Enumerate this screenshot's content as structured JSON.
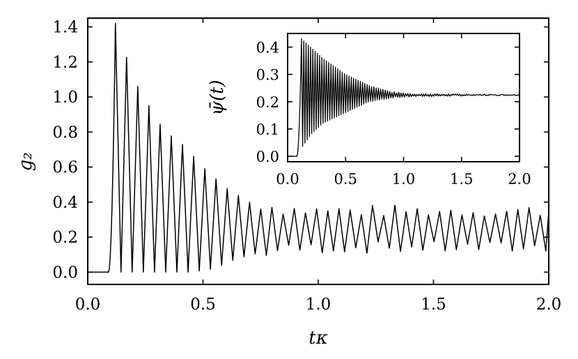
{
  "chart_data": [
    {
      "type": "line",
      "xlabel": "tκ",
      "ylabel": "g₂",
      "xlim": [
        0.0,
        2.0
      ],
      "ylim": [
        -0.07,
        1.45
      ],
      "x_ticks": [
        "0.0",
        "0.5",
        "1.0",
        "1.5",
        "2.0"
      ],
      "y_ticks": [
        "0.0",
        "0.2",
        "0.4",
        "0.6",
        "0.8",
        "1.0",
        "1.2",
        "1.4"
      ],
      "series": [
        {
          "color": "#000000",
          "description_envelope": {
            "onset_x": 0.09,
            "first_peak": {
              "x": 0.12,
              "y": 1.42
            },
            "peaks": [
              [
                0.12,
                1.42
              ],
              [
                0.17,
                1.22
              ],
              [
                0.22,
                1.05
              ],
              [
                0.27,
                0.94
              ],
              [
                0.31,
                0.85
              ],
              [
                0.36,
                0.78
              ],
              [
                0.42,
                0.72
              ],
              [
                0.5,
                0.6
              ],
              [
                0.6,
                0.48
              ],
              [
                0.7,
                0.4
              ],
              [
                0.85,
                0.36
              ],
              [
                1.0,
                0.35
              ],
              [
                2.0,
                0.35
              ]
            ],
            "troughs": [
              [
                0.12,
                0.0
              ],
              [
                0.3,
                0.0
              ],
              [
                0.45,
                0.0
              ],
              [
                0.55,
                0.02
              ],
              [
                0.65,
                0.08
              ],
              [
                0.8,
                0.12
              ],
              [
                1.0,
                0.14
              ],
              [
                2.0,
                0.14
              ]
            ],
            "steady_mean": 0.25
          }
        }
      ],
      "grid": false
    },
    {
      "type": "line",
      "inset": true,
      "xlabel": "",
      "ylabel": "ψ̄(t)",
      "xlim": [
        0.0,
        2.0
      ],
      "ylim": [
        -0.02,
        0.45
      ],
      "x_ticks": [
        "0.0",
        "0.5",
        "1.0",
        "1.5",
        "2.0"
      ],
      "y_ticks": [
        "0.0",
        "0.1",
        "0.2",
        "0.3",
        "0.4"
      ],
      "series": [
        {
          "color": "#000000",
          "description_envelope": {
            "onset_x": 0.08,
            "first_peak": {
              "x": 0.12,
              "y": 0.43
            },
            "peaks": [
              [
                0.12,
                0.43
              ],
              [
                0.3,
                0.36
              ],
              [
                0.5,
                0.3
              ],
              [
                0.7,
                0.26
              ],
              [
                0.9,
                0.235
              ],
              [
                1.1,
                0.228
              ],
              [
                2.0,
                0.225
              ]
            ],
            "troughs": [
              [
                0.12,
                0.03
              ],
              [
                0.2,
                0.08
              ],
              [
                0.3,
                0.12
              ],
              [
                0.5,
                0.16
              ],
              [
                0.7,
                0.2
              ],
              [
                0.9,
                0.215
              ],
              [
                1.1,
                0.22
              ],
              [
                2.0,
                0.225
              ]
            ],
            "steady_value": 0.225
          }
        }
      ],
      "grid": false
    }
  ]
}
